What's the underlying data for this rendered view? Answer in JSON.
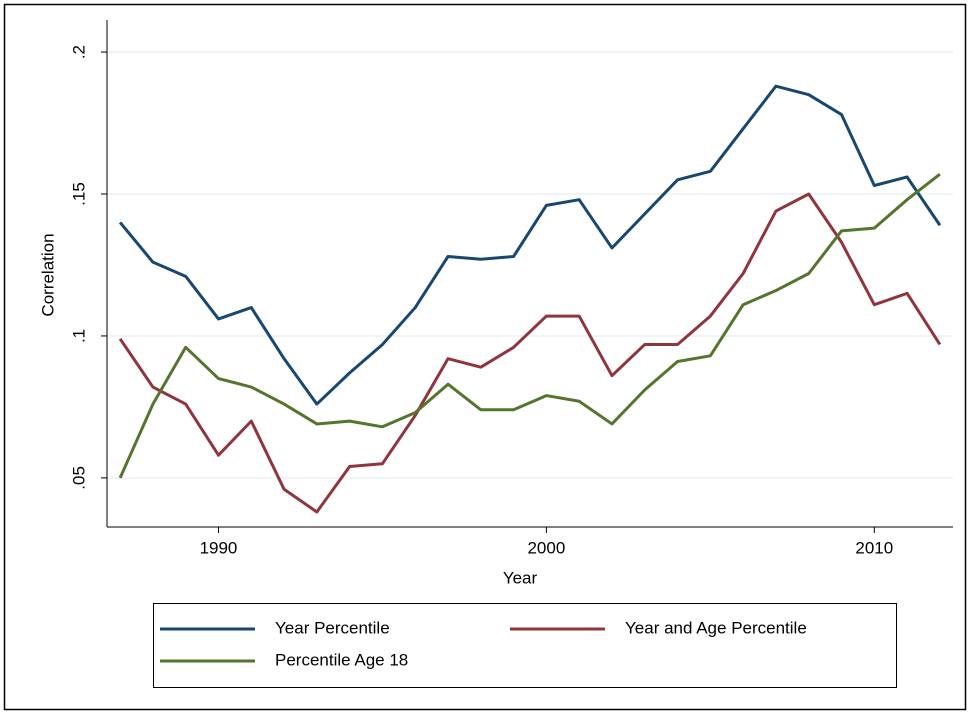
{
  "chart_data": {
    "type": "line",
    "x_label": "Year",
    "y_label": "Correlation",
    "x": [
      1987,
      1988,
      1989,
      1990,
      1991,
      1992,
      1993,
      1994,
      1995,
      1996,
      1997,
      1998,
      1999,
      2000,
      2001,
      2002,
      2003,
      2004,
      2005,
      2006,
      2007,
      2008,
      2009,
      2010,
      2011,
      2012
    ],
    "series": [
      {
        "name": "Year Percentile",
        "color": "#1a476f",
        "values": [
          0.14,
          0.126,
          0.121,
          0.106,
          0.11,
          0.092,
          0.076,
          0.087,
          0.097,
          0.11,
          0.128,
          0.127,
          0.128,
          0.146,
          0.148,
          0.131,
          0.143,
          0.155,
          0.158,
          0.173,
          0.188,
          0.185,
          0.178,
          0.153,
          0.156,
          0.139
        ]
      },
      {
        "name": "Year and Age Percentile",
        "color": "#90353b",
        "values": [
          0.099,
          0.082,
          0.076,
          0.058,
          0.07,
          0.046,
          0.038,
          0.054,
          0.055,
          0.072,
          0.092,
          0.089,
          0.096,
          0.107,
          0.107,
          0.086,
          0.097,
          0.097,
          0.107,
          0.122,
          0.144,
          0.15,
          0.133,
          0.111,
          0.115,
          0.097
        ]
      },
      {
        "name": "Percentile Age 18",
        "color": "#55752f",
        "values": [
          0.05,
          0.076,
          0.096,
          0.085,
          0.082,
          0.076,
          0.069,
          0.07,
          0.068,
          0.073,
          0.083,
          0.074,
          0.074,
          0.079,
          0.077,
          0.069,
          0.081,
          0.091,
          0.093,
          0.111,
          0.116,
          0.122,
          0.137,
          0.138,
          0.148,
          0.157
        ]
      }
    ],
    "xlim": [
      1986.6,
      2012.4
    ],
    "ylim": [
      0.0327,
      0.2113
    ],
    "xticks": [
      1990,
      2000,
      2010
    ],
    "yticks": [
      {
        "value": 0.05,
        "label": ".05"
      },
      {
        "value": 0.1,
        "label": ".1"
      },
      {
        "value": 0.15,
        "label": ".15"
      },
      {
        "value": 0.2,
        "label": ".2"
      }
    ],
    "grid": true,
    "legend": "bottom"
  }
}
